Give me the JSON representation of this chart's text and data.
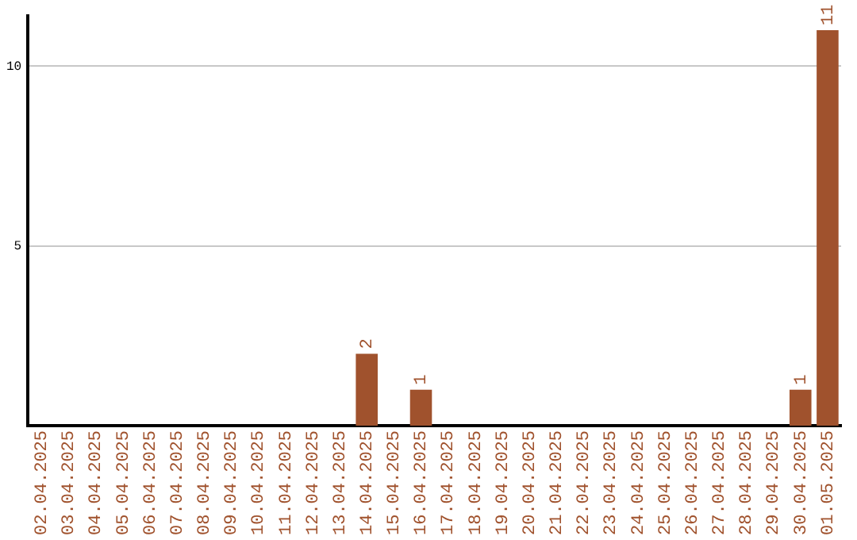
{
  "chart_data": {
    "type": "bar",
    "categories": [
      "02.04.2025",
      "03.04.2025",
      "04.04.2025",
      "05.04.2025",
      "06.04.2025",
      "07.04.2025",
      "08.04.2025",
      "09.04.2025",
      "10.04.2025",
      "11.04.2025",
      "12.04.2025",
      "13.04.2025",
      "14.04.2025",
      "15.04.2025",
      "16.04.2025",
      "17.04.2025",
      "18.04.2025",
      "19.04.2025",
      "20.04.2025",
      "21.04.2025",
      "22.04.2025",
      "23.04.2025",
      "24.04.2025",
      "25.04.2025",
      "26.04.2025",
      "27.04.2025",
      "28.04.2025",
      "29.04.2025",
      "30.04.2025",
      "01.05.2025"
    ],
    "values": [
      0,
      0,
      0,
      0,
      0,
      0,
      0,
      0,
      0,
      0,
      0,
      0,
      2,
      0,
      1,
      0,
      0,
      0,
      0,
      0,
      0,
      0,
      0,
      0,
      0,
      0,
      0,
      0,
      1,
      11
    ],
    "value_labels": [
      null,
      null,
      null,
      null,
      null,
      null,
      null,
      null,
      null,
      null,
      null,
      null,
      "2",
      null,
      "1",
      null,
      null,
      null,
      null,
      null,
      null,
      null,
      null,
      null,
      null,
      null,
      null,
      null,
      "1",
      "11"
    ],
    "color": "#a0522d",
    "ylim": [
      0,
      11.4
    ],
    "yticks": [
      5,
      10
    ],
    "grid": "y",
    "legend": false
  }
}
